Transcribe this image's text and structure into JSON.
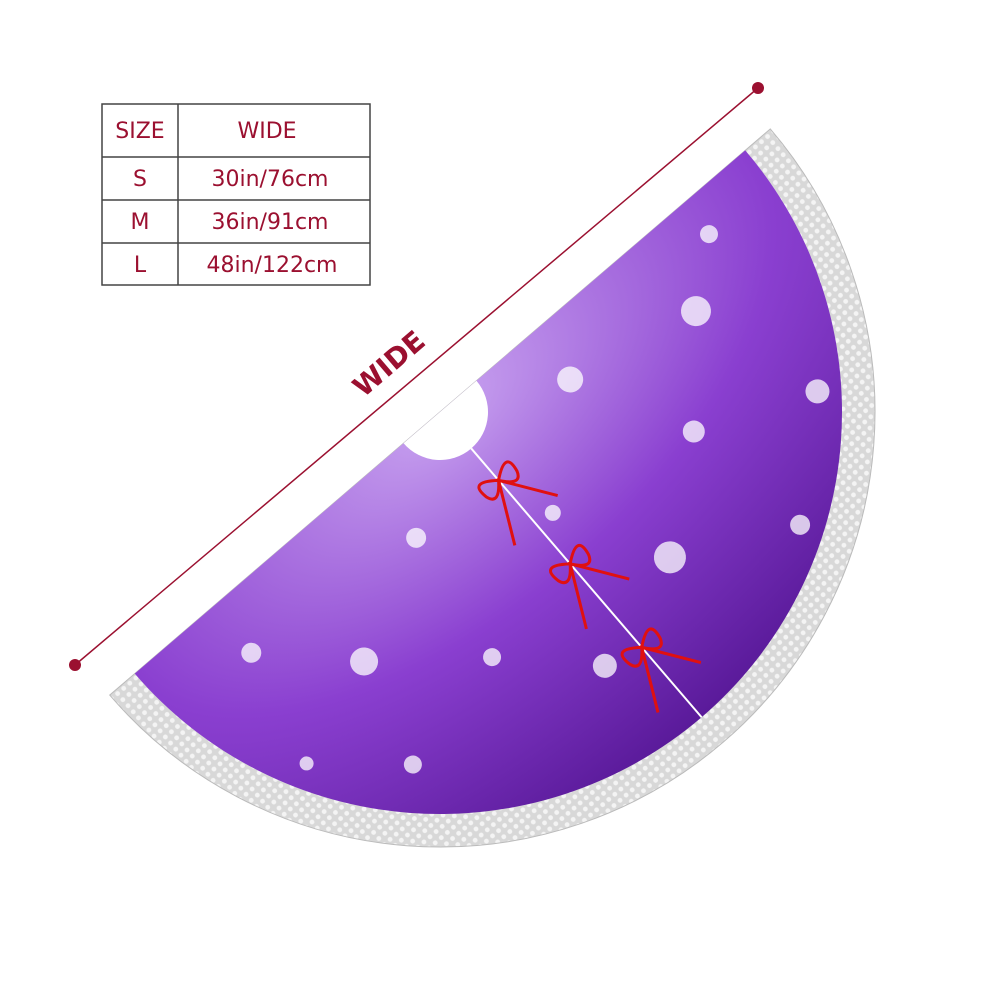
{
  "size_table": {
    "header": [
      "SIZE",
      "WIDE"
    ],
    "rows": [
      [
        "S",
        "30in/76cm"
      ],
      [
        "M",
        "36in/91cm"
      ],
      [
        "L",
        "48in/122cm"
      ]
    ]
  },
  "dimension_label": "WIDE"
}
